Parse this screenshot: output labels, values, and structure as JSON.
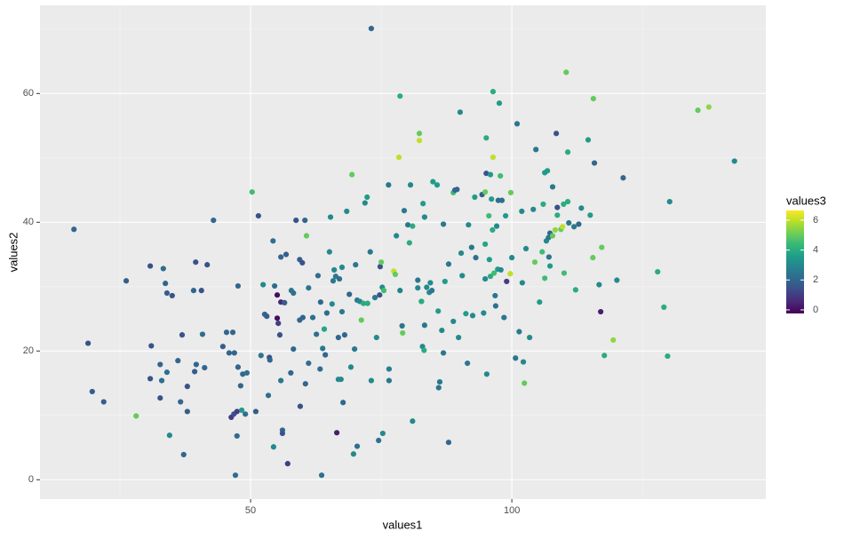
{
  "chart_data": {
    "type": "scatter",
    "x_label": "values1",
    "y_label": "values2",
    "xlim": [
      9.7,
      148.6
    ],
    "ylim": [
      -3.0,
      73.7
    ],
    "xticks": [
      50,
      100
    ],
    "yticks": [
      0,
      20,
      40,
      60
    ],
    "xminor": [
      25,
      75,
      125
    ],
    "yminor": [
      10,
      30,
      50,
      70
    ],
    "grid": true,
    "legend": {
      "title": "values3",
      "ticks": [
        0,
        2,
        4,
        6
      ],
      "lim": [
        -0.24,
        6.65
      ],
      "position": "right",
      "colors": [
        "#440154",
        "#482878",
        "#3e4a89",
        "#31688e",
        "#26828e",
        "#1f9e89",
        "#35b779",
        "#6ece58",
        "#b5de2b",
        "#fde725"
      ]
    },
    "x": [
      16.2,
      18.9,
      19.7,
      21.9,
      26.2,
      28.1,
      30.8,
      31,
      30.8,
      32.7,
      32.7,
      33.3,
      33.7,
      33,
      34,
      34,
      35,
      34.5,
      36.1,
      36.6,
      36.9,
      37.2,
      37.9,
      37.9,
      39.1,
      39.5,
      39.6,
      39.3,
      40.6,
      40.8,
      41.2,
      41.7,
      42.9,
      44.7,
      45.4,
      45.9,
      46.6,
      46.9,
      46.3,
      46.8,
      47.4,
      47.1,
      47.4,
      47.6,
      47.6,
      48.1,
      48.3,
      48.5,
      49.3,
      49,
      50.3,
      51,
      51.5,
      52.4,
      52.7,
      53.1,
      52,
      53.6,
      53.4,
      53.7,
      54.3,
      54.6,
      54.4,
      55.1,
      55.1,
      55.3,
      55.6,
      55.8,
      55.8,
      55.8,
      56.1,
      56.1,
      56.5,
      56.8,
      57.1,
      57.8,
      58.2,
      57.7,
      58.2,
      58.7,
      59.4,
      59.4,
      59.5,
      59.9,
      60,
      60.4,
      60.7,
      60.5,
      61.1,
      61.1,
      61.9,
      62.6,
      62.9,
      63.3,
      63.4,
      63.8,
      63.6,
      64.1,
      64.3,
      64.6,
      65.3,
      65.1,
      65.6,
      65.8,
      66.3,
      66,
      66.5,
      66.8,
      66.8,
      67,
      67.5,
      67.5,
      67.7,
      67.3,
      68,
      68.4,
      68.9,
      69.2,
      69.4,
      69.7,
      69.9,
      70.1,
      70.4,
      70.4,
      70.9,
      71.2,
      71.6,
      71.9,
      72.3,
      72.4,
      72.9,
      73.1,
      73.1,
      73.8,
      74.1,
      74.5,
      74.8,
      75.2,
      75,
      74.7,
      75.3,
      75.5,
      76.4,
      76.5,
      76.5,
      77.4,
      77.7,
      77.9,
      78.4,
      78.6,
      78.6,
      79,
      79.4,
      79.1,
      80.1,
      80.4,
      80.6,
      81,
      81,
      82,
      82,
      82.3,
      82.3,
      82.7,
      82.9,
      83,
      83.2,
      83.3,
      83.3,
      83.7,
      84.2,
      84.4,
      84.7,
      84.9,
      85.7,
      85.9,
      86,
      86.2,
      86.6,
      86.9,
      86.9,
      87.2,
      87.9,
      87.9,
      88.8,
      88.8,
      89.1,
      89.5,
      89.8,
      90.1,
      90.3,
      90.5,
      91.2,
      91.5,
      91.7,
      92.3,
      92.5,
      92.9,
      93.1,
      94.3,
      94.6,
      94.9,
      94.9,
      94.9,
      95.1,
      95.1,
      95.2,
      95.6,
      95.7,
      95.9,
      96.1,
      95.9,
      96.3,
      96.4,
      96.4,
      96.6,
      96.8,
      96.9,
      97.1,
      97.3,
      97.4,
      97.6,
      97.8,
      97.9,
      98.1,
      98.5,
      98.8,
      99,
      99.7,
      99.8,
      100,
      100.7,
      101,
      101.4,
      101.9,
      102,
      102.2,
      102.4,
      102.7,
      103.4,
      104.1,
      104.4,
      104.6,
      105.3,
      105.8,
      106,
      106.3,
      106.3,
      106.6,
      106.8,
      107,
      107.1,
      107.3,
      107.3,
      107.8,
      107.8,
      108.3,
      108.5,
      108.7,
      108.7,
      109.4,
      109.7,
      109.9,
      110,
      110.4,
      110.7,
      110.7,
      110.9,
      111.9,
      112.2,
      112.8,
      113.3,
      114.6,
      115,
      115.5,
      115.6,
      115.8,
      116.7,
      117,
      117.2,
      117.7,
      119.4,
      120.1,
      121.3,
      127.9,
      129.1,
      129.8,
      130.2,
      135.6,
      137.7,
      142.6,
      82.7
    ],
    "y": [
      38.9,
      21.2,
      13.7,
      12.1,
      30.9,
      9.9,
      33.2,
      20.8,
      15.7,
      12.7,
      17.9,
      32.8,
      30.5,
      15.4,
      16.7,
      29,
      28.6,
      6.9,
      18.5,
      12.1,
      22.5,
      3.9,
      14.5,
      10.6,
      29.4,
      33.8,
      17.9,
      16.8,
      29.4,
      22.6,
      17.4,
      33.4,
      40.3,
      20.7,
      22.9,
      19.7,
      22.9,
      19.7,
      9.7,
      10.2,
      10.6,
      0.7,
      6.8,
      30.1,
      17.5,
      14.6,
      10.8,
      16.4,
      16.6,
      10.2,
      44.7,
      10.6,
      41,
      30.3,
      25.7,
      25.4,
      19.3,
      19,
      13.1,
      18.6,
      37.1,
      30.1,
      5.1,
      28.7,
      25.1,
      24.3,
      22.5,
      27.6,
      34.6,
      15.4,
      7.7,
      7.2,
      27.5,
      35,
      2.5,
      29.4,
      29,
      16.6,
      20.3,
      40.3,
      34.2,
      24.8,
      11.4,
      33.7,
      25.2,
      40.3,
      37.9,
      14.9,
      29.8,
      18.1,
      25.2,
      22.6,
      31.7,
      17.2,
      27.6,
      20.4,
      0.7,
      23.4,
      19.4,
      25.9,
      40.8,
      35.4,
      27.3,
      30.9,
      31.6,
      32.6,
      7.3,
      22.1,
      15.6,
      31.2,
      33,
      26.1,
      12,
      15.6,
      22.5,
      41.7,
      28.8,
      17.5,
      47.4,
      4,
      20.3,
      33.4,
      5.2,
      27.9,
      27.7,
      24.8,
      27.4,
      43,
      43.9,
      27.4,
      35.4,
      15.4,
      70.1,
      28.3,
      22.1,
      6.1,
      33.1,
      29.9,
      33.8,
      28.7,
      7.2,
      29.4,
      45.8,
      15.4,
      17.2,
      32.4,
      31.9,
      37.9,
      50.1,
      59.6,
      29.4,
      23.9,
      41.8,
      22.8,
      39.6,
      36.8,
      45.8,
      39.4,
      9.1,
      29.8,
      31,
      53.8,
      52.7,
      27.7,
      20.7,
      42.9,
      20.1,
      24,
      40.8,
      29.9,
      29.1,
      30.6,
      29.4,
      46.3,
      45.8,
      26.2,
      14.3,
      15.2,
      23.2,
      39.7,
      19.7,
      30.8,
      5.8,
      33.5,
      24.6,
      44.6,
      45,
      45.1,
      22.1,
      57.1,
      35.2,
      31.7,
      25.8,
      18.1,
      39.6,
      36.1,
      25.5,
      43.9,
      34.5,
      44.3,
      25.9,
      31.2,
      36.6,
      44.7,
      53.1,
      47.6,
      16.4,
      41,
      34.2,
      31.6,
      43.6,
      47.4,
      38.8,
      50.1,
      60.3,
      32.1,
      28.6,
      27,
      39.4,
      32.7,
      43.4,
      58.5,
      47.2,
      32.6,
      43.4,
      25.2,
      41,
      30.8,
      32,
      44.6,
      34.5,
      18.9,
      55.3,
      23,
      41.7,
      30.6,
      18.3,
      15,
      35.9,
      22.1,
      42,
      33.8,
      51.3,
      27.6,
      35.4,
      42.8,
      31.3,
      47.7,
      37.1,
      48,
      37.6,
      34.6,
      38.3,
      33.2,
      37.9,
      45.5,
      38.8,
      53.8,
      42.3,
      41.1,
      38.9,
      39.3,
      42.8,
      32.1,
      63.3,
      43.2,
      50.9,
      39.9,
      39.3,
      29.5,
      39.7,
      42.2,
      52.8,
      41.1,
      34.5,
      59.2,
      49.2,
      30.3,
      26.1,
      36.1,
      19.3,
      21.7,
      31,
      46.9,
      32.3,
      26.8,
      19.2,
      43.2,
      57.4,
      57.9,
      49.5,
      27.7
    ],
    "c": [
      2,
      1.5,
      1.8,
      1.8,
      1.8,
      5,
      1.5,
      1.5,
      1.5,
      1.5,
      2,
      2.2,
      2,
      2.3,
      2.2,
      1.8,
      1.5,
      3,
      2,
      2,
      1.5,
      2,
      1.5,
      1.8,
      2,
      1.5,
      2,
      1.8,
      1.5,
      2.2,
      2,
      1.5,
      2,
      1.8,
      2,
      2,
      2,
      2,
      1,
      1.5,
      1,
      2.2,
      2.2,
      2,
      2,
      2,
      3.5,
      2,
      2.3,
      2.3,
      4.5,
      1.8,
      1.5,
      3,
      2,
      1.8,
      2.5,
      1.5,
      2.3,
      2,
      2.3,
      2.2,
      3,
      0,
      0,
      1,
      1.5,
      0.5,
      2,
      2.5,
      2,
      1.5,
      1.8,
      1.8,
      1,
      2.5,
      2.3,
      2,
      2,
      1.5,
      1.8,
      2,
      1.5,
      1.5,
      2,
      2,
      5,
      2,
      2.5,
      2.2,
      2.3,
      2.3,
      2.2,
      2.2,
      2,
      2.5,
      2.3,
      3.8,
      2,
      2.2,
      3,
      3,
      3,
      2.5,
      2.5,
      3,
      0.3,
      2,
      3,
      2.3,
      3,
      2.5,
      2,
      3,
      2,
      3,
      2,
      3,
      5,
      3,
      2.5,
      2.5,
      2.3,
      2.5,
      3,
      5,
      4,
      3,
      3.5,
      4,
      2.5,
      3,
      2,
      2.5,
      3,
      2.3,
      1.5,
      3,
      5,
      1.5,
      3,
      4.5,
      2.5,
      2.5,
      2.8,
      6,
      5,
      3,
      6,
      4,
      2.8,
      2.5,
      2.5,
      5,
      2.5,
      4,
      3,
      4,
      3,
      3,
      2.5,
      5,
      6,
      4,
      3,
      3.5,
      4,
      2.5,
      3,
      3,
      3,
      3,
      2.5,
      3.5,
      3.5,
      3.5,
      2.5,
      2.5,
      3,
      2.5,
      2.5,
      3.5,
      2,
      2.5,
      3,
      4.5,
      2,
      2,
      3,
      3,
      3,
      3,
      3.5,
      2.5,
      3,
      2.5,
      3,
      3.5,
      2.3,
      1.8,
      3,
      3,
      3.8,
      5,
      4,
      1.5,
      3,
      4.5,
      3.5,
      4,
      3.5,
      3.5,
      4,
      6,
      4,
      4.5,
      2.5,
      2.3,
      3,
      3.5,
      2.2,
      3.5,
      4.5,
      3,
      2.2,
      2.5,
      3.5,
      1,
      6,
      5,
      3,
      2.5,
      2.5,
      2.5,
      3,
      3,
      3,
      5,
      3,
      3,
      3,
      5,
      2.5,
      3.5,
      4.5,
      4,
      4.5,
      3.5,
      3,
      3.5,
      2.5,
      2.5,
      2,
      3.5,
      5,
      2.5,
      5.5,
      1.5,
      1.5,
      4,
      5,
      6,
      4,
      4.5,
      5,
      4,
      4,
      2.5,
      2.5,
      4,
      2,
      3,
      3.5,
      3.5,
      5,
      5,
      2,
      3,
      0.3,
      5,
      4,
      5.5,
      3,
      2,
      4,
      4,
      4,
      3,
      5,
      5.5,
      3,
      4
    ]
  }
}
